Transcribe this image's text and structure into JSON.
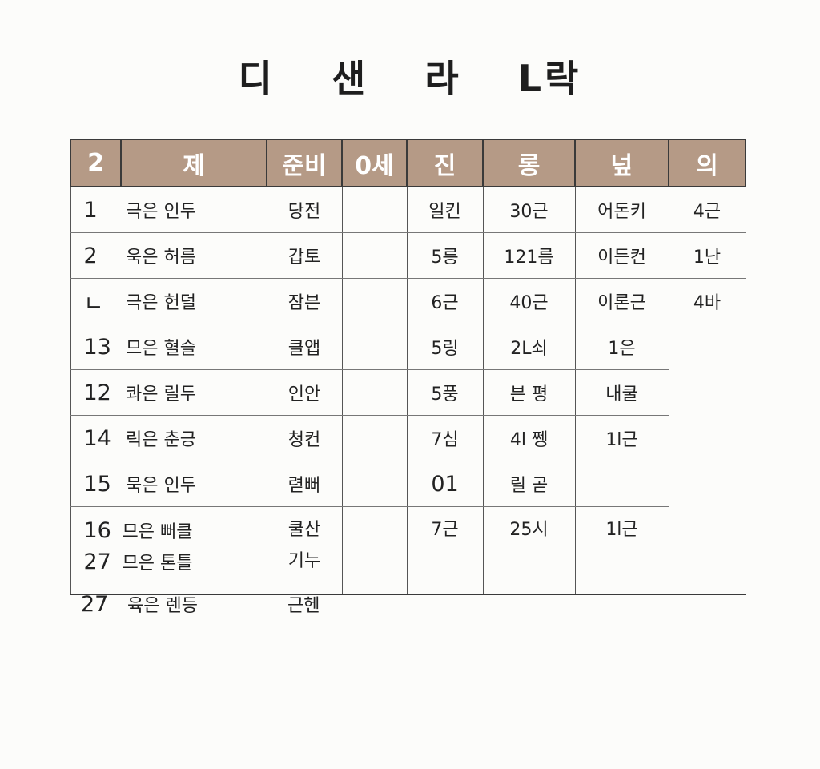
{
  "title": [
    "디",
    "샌",
    "라",
    "L락"
  ],
  "headers": [
    "2",
    "제",
    "준비",
    "0세",
    "진",
    "롱",
    "넢",
    "의"
  ],
  "rows": [
    {
      "num": "1",
      "name": "극은 인두",
      "c3": "당전",
      "c5": "일킨",
      "c6": "30근",
      "c7": "어돈키",
      "c8": "4근"
    },
    {
      "num": "2",
      "name": "욱은 허름",
      "c3": "갑토",
      "c5": "5릉",
      "c6": "121름",
      "c7": "이든컨",
      "c8": "1난"
    },
    {
      "num": "ㄴ",
      "name": "극은 헌덜",
      "c3": "잠븐",
      "c5": "6근",
      "c6": "40근",
      "c7": "이론근",
      "c8": "4바"
    },
    {
      "num": "13",
      "name": "므은 혈슬",
      "c3": "클앱",
      "c5": "5링",
      "c6": "2L쇠",
      "c7": "1은",
      "c8": ""
    },
    {
      "num": "12",
      "name": "콰은 릴두",
      "c3": "인안",
      "c5": "5풍",
      "c6": "븐 평",
      "c7": "내쿨",
      "c8": ""
    },
    {
      "num": "14",
      "name": "릭은 춘긍",
      "c3": "청컨",
      "c5": "7심",
      "c6": "4l 쩽",
      "c7": "1l근",
      "c8": ""
    },
    {
      "num": "15",
      "name": "묵은 인두",
      "c3": "렫뻐",
      "c5": "01",
      "c6": "릴 곧",
      "c7": "",
      "c8": ""
    }
  ],
  "double_row": {
    "top": {
      "num": "16",
      "name": "므은 뻐클",
      "c3": "쿨산",
      "c5": "7근",
      "c6": "25시",
      "c7": "1l근"
    },
    "bottom": {
      "num": "27",
      "name": "므은 톤틀",
      "c3": "기누"
    }
  },
  "outside_row": {
    "num": "27",
    "name": "육은 렌등",
    "c3": "근헨"
  }
}
